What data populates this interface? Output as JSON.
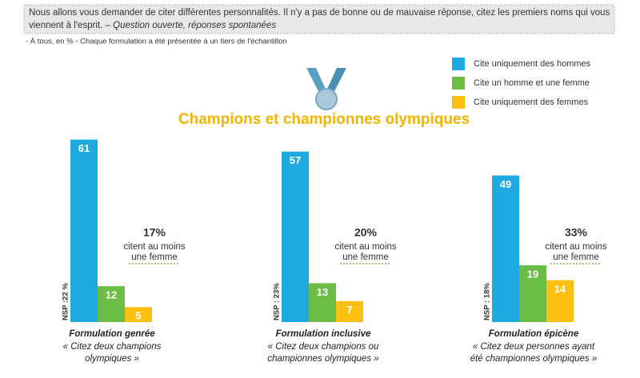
{
  "header": {
    "question": "Nous allons vous demander de citer différentes personnalités. Il n'y a pas de bonne ou de mauvaise réponse, citez les premiers noms qui vous",
    "question_line2": "viennent à l'esprit. –",
    "question_italic": "Question ouverte, réponses spontanées",
    "note": "- À tous, en % - Chaque formulation a été présentée à un tiers de l'échantillon"
  },
  "chart_data": {
    "type": "bar",
    "title": "Champions et championnes olympiques",
    "categories": [
      "Formulation genrée",
      "Formulation inclusive",
      "Formulation épicène"
    ],
    "category_notes": [
      [
        "« Citez deux champions",
        "olympiques »"
      ],
      [
        "« Citez deux champions ou",
        "championnes olympiques »"
      ],
      [
        "« Citez deux personnes ayant",
        "été championnes olympiques »"
      ]
    ],
    "nsp_labels": [
      "NSP :22 %",
      "NSP : 23%",
      "NSP : 18%"
    ],
    "summary_labels": [
      "17%",
      "20%",
      "33%"
    ],
    "summary_text": [
      "citent au moins",
      "une femme"
    ],
    "ylim": [
      0,
      70
    ],
    "series": [
      {
        "name": "Cite uniquement des hommes",
        "color": "#1eaadf",
        "values": [
          61,
          57,
          49
        ]
      },
      {
        "name": "Cite un homme et une femme",
        "color": "#6cbd45",
        "values": [
          12,
          13,
          19
        ]
      },
      {
        "name": "Cite uniquement des femmes",
        "color": "#fdc011",
        "values": [
          5,
          7,
          14
        ]
      }
    ]
  }
}
